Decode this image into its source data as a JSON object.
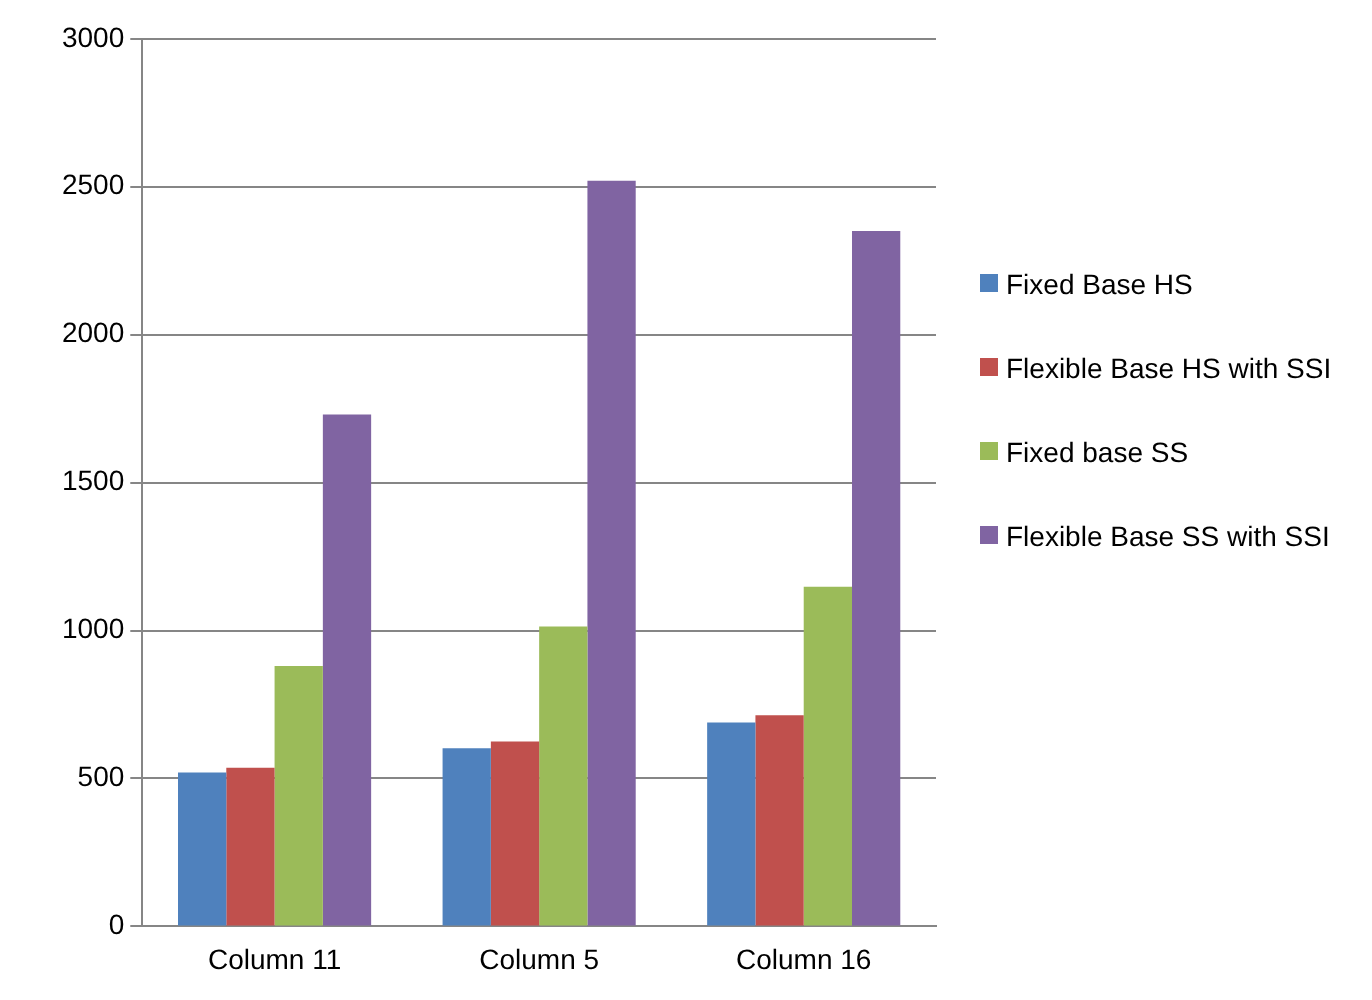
{
  "chart_data": {
    "type": "bar",
    "categories": [
      "Column 11",
      "Column 5",
      "Column 16"
    ],
    "series": [
      {
        "name": "Fixed Base HS",
        "color": "#4f81bd",
        "values": [
          520,
          602,
          689
        ]
      },
      {
        "name": "Flexible Base HS with SSI",
        "color": "#c0504d",
        "values": [
          536,
          625,
          714
        ]
      },
      {
        "name": "Fixed base SS",
        "color": "#9bbb59",
        "values": [
          880,
          1014,
          1148
        ]
      },
      {
        "name": "Flexible Base SS with SSI",
        "color": "#8064a2",
        "values": [
          1730,
          2520,
          2350
        ]
      }
    ],
    "ylim": [
      0,
      3000
    ],
    "yticks": [
      0,
      500,
      1000,
      1500,
      2000,
      2500,
      3000
    ],
    "grid": "y",
    "legend": "right"
  }
}
